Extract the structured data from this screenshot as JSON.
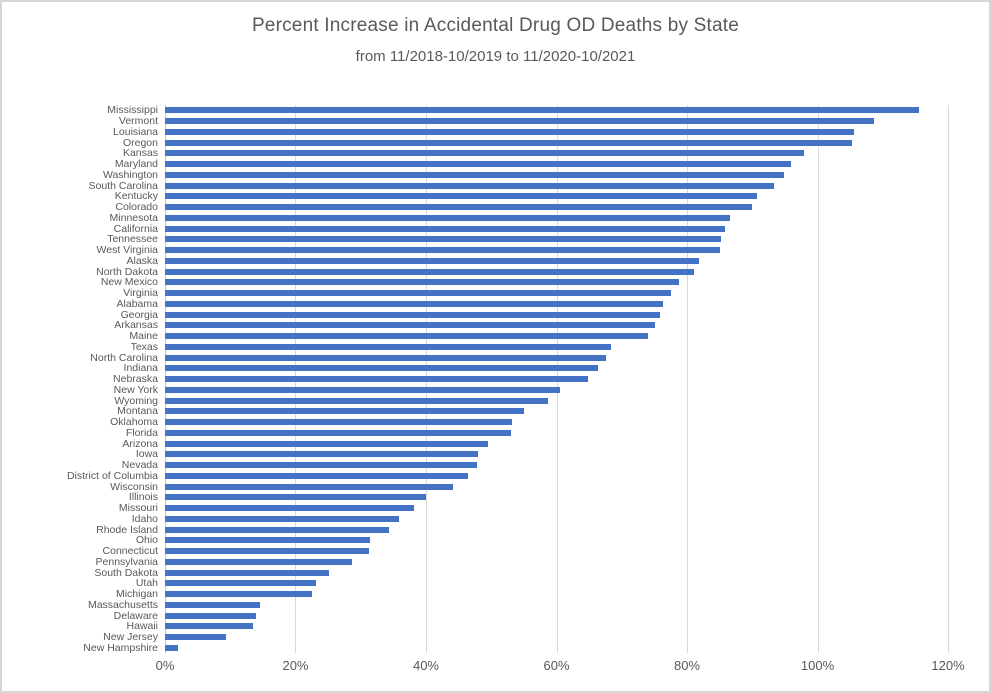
{
  "window": {
    "background": "#ffffff",
    "border_color": "#d6d6d6"
  },
  "chart_data": {
    "type": "bar",
    "orientation": "horizontal",
    "title": "Percent Increase in Accidental Drug OD Deaths by State",
    "subtitle": "from 11/2018-10/2019 to 11/2020-10/2021",
    "bar_color": "#4472C4",
    "gridline_color": "#d9d9d9",
    "text_color": "#595959",
    "grid": true,
    "legend": false,
    "x_axis": {
      "min": 0,
      "max": 120,
      "step": 20,
      "unit": "%",
      "tick_labels": [
        "0%",
        "20%",
        "40%",
        "60%",
        "80%",
        "100%",
        "120%"
      ]
    },
    "categories": [
      "Mississippi",
      "Vermont",
      "Louisiana",
      "Oregon",
      "Kansas",
      "Maryland",
      "Washington",
      "South Carolina",
      "Kentucky",
      "Colorado",
      "Minnesota",
      "California",
      "Tennessee",
      "West Virginia",
      "Alaska",
      "North Dakota",
      "New Mexico",
      "Virginia",
      "Alabama",
      "Georgia",
      "Arkansas",
      "Maine",
      "Texas",
      "North Carolina",
      "Indiana",
      "Nebraska",
      "New York",
      "Wyoming",
      "Montana",
      "Oklahoma",
      "Florida",
      "Arizona",
      "Iowa",
      "Nevada",
      "District of Columbia",
      "Wisconsin",
      "Illinois",
      "Missouri",
      "Idaho",
      "Rhode Island",
      "Ohio",
      "Connecticut",
      "Pennsylvania",
      "South Dakota",
      "Utah",
      "Michigan",
      "Massachusetts",
      "Delaware",
      "Hawaii",
      "New Jersey",
      "New Hampshire"
    ],
    "values": [
      115.6,
      108.7,
      105.6,
      105.3,
      98.0,
      96.0,
      94.8,
      93.4,
      90.8,
      90.0,
      86.6,
      85.8,
      85.2,
      85.1,
      81.8,
      81.0,
      78.8,
      77.5,
      76.3,
      75.9,
      75.1,
      74.0,
      68.3,
      67.6,
      66.3,
      64.9,
      60.5,
      58.7,
      55.0,
      53.2,
      53.0,
      49.5,
      48.0,
      47.8,
      46.4,
      44.2,
      40.0,
      38.1,
      35.9,
      34.4,
      31.4,
      31.2,
      28.7,
      25.1,
      23.1,
      22.6,
      14.5,
      13.9,
      13.5,
      9.3,
      2.0
    ]
  }
}
